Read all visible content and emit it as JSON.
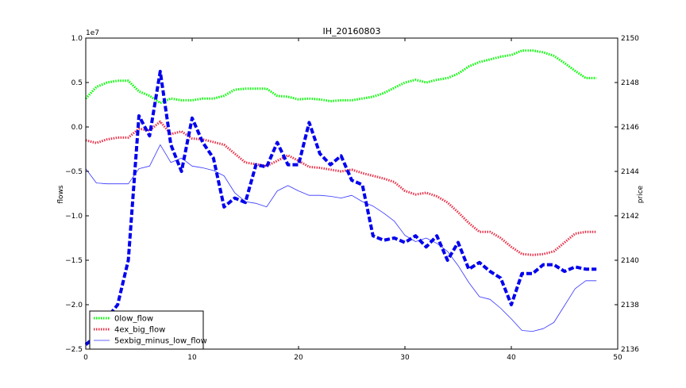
{
  "chart_data": {
    "type": "line",
    "title": "IH_20160803",
    "xlabel": "",
    "ylabel_left": "flows",
    "ylabel_right": "price",
    "left_axis_multiplier": "1e7",
    "xlim": [
      0,
      50
    ],
    "ylim_left": [
      -2.5,
      1.0
    ],
    "ylim_right": [
      2136,
      2150
    ],
    "grid": false,
    "legend_position": "lower-left",
    "x_ticks": [
      0,
      10,
      20,
      30,
      40,
      50
    ],
    "x_tick_labels": [
      "0",
      "10",
      "20",
      "30",
      "40",
      "50"
    ],
    "y_left_ticks": [
      -2.5,
      -2.0,
      -1.5,
      -1.0,
      -0.5,
      0.0,
      0.5,
      1.0
    ],
    "y_left_tick_labels": [
      "−2.5",
      "−2.0",
      "−1.5",
      "−1.0",
      "−0.5",
      "0.0",
      "0.5",
      "1.0"
    ],
    "y_right_ticks": [
      2136,
      2138,
      2140,
      2142,
      2144,
      2146,
      2148,
      2150
    ],
    "y_right_tick_labels": [
      "2136",
      "2138",
      "2140",
      "2142",
      "2144",
      "2146",
      "2148",
      "2150"
    ],
    "series": [
      {
        "name": "0low_flow",
        "axis": "left",
        "color": "#00ff00",
        "style": "dotted",
        "x": [
          0,
          1,
          2,
          3,
          4,
          5,
          6,
          7,
          8,
          9,
          10,
          11,
          12,
          13,
          14,
          15,
          16,
          17,
          18,
          19,
          20,
          21,
          22,
          23,
          24,
          25,
          26,
          27,
          28,
          29,
          30,
          31,
          32,
          33,
          34,
          35,
          36,
          37,
          38,
          39,
          40,
          41,
          42,
          43,
          44,
          45,
          46,
          47,
          48
        ],
        "values": [
          0.32,
          0.45,
          0.5,
          0.52,
          0.52,
          0.4,
          0.35,
          0.27,
          0.32,
          0.3,
          0.3,
          0.32,
          0.32,
          0.35,
          0.42,
          0.43,
          0.43,
          0.43,
          0.35,
          0.34,
          0.31,
          0.32,
          0.31,
          0.29,
          0.3,
          0.3,
          0.32,
          0.34,
          0.38,
          0.44,
          0.5,
          0.53,
          0.5,
          0.53,
          0.55,
          0.6,
          0.68,
          0.73,
          0.76,
          0.79,
          0.81,
          0.86,
          0.86,
          0.84,
          0.8,
          0.72,
          0.63,
          0.55,
          0.55
        ]
      },
      {
        "name": "4ex_big_flow",
        "axis": "left",
        "color": "#e8324a",
        "style": "dotted",
        "x": [
          0,
          1,
          2,
          3,
          4,
          5,
          6,
          7,
          8,
          9,
          10,
          11,
          12,
          13,
          14,
          15,
          16,
          17,
          18,
          19,
          20,
          21,
          22,
          23,
          24,
          25,
          26,
          27,
          28,
          29,
          30,
          31,
          32,
          33,
          34,
          35,
          36,
          37,
          38,
          39,
          40,
          41,
          42,
          43,
          44,
          45,
          46,
          47,
          48
        ],
        "values": [
          -0.15,
          -0.18,
          -0.14,
          -0.12,
          -0.12,
          -0.02,
          -0.04,
          0.06,
          -0.08,
          -0.05,
          -0.13,
          -0.14,
          -0.17,
          -0.2,
          -0.3,
          -0.4,
          -0.42,
          -0.44,
          -0.38,
          -0.32,
          -0.38,
          -0.45,
          -0.46,
          -0.48,
          -0.5,
          -0.48,
          -0.52,
          -0.55,
          -0.58,
          -0.62,
          -0.72,
          -0.76,
          -0.74,
          -0.78,
          -0.85,
          -0.96,
          -1.08,
          -1.18,
          -1.18,
          -1.25,
          -1.35,
          -1.43,
          -1.44,
          -1.43,
          -1.4,
          -1.3,
          -1.2,
          -1.18,
          -1.18
        ]
      },
      {
        "name": "5exbig_minus_low_flow",
        "axis": "left",
        "color": "#3333ff",
        "style": "solid",
        "x": [
          0,
          1,
          2,
          3,
          4,
          5,
          6,
          7,
          8,
          9,
          10,
          11,
          12,
          13,
          14,
          15,
          16,
          17,
          18,
          19,
          20,
          21,
          22,
          23,
          24,
          25,
          26,
          27,
          28,
          29,
          30,
          31,
          32,
          33,
          34,
          35,
          36,
          37,
          38,
          39,
          40,
          41,
          42,
          43,
          44,
          45,
          46,
          47,
          48
        ],
        "values": [
          -0.47,
          -0.63,
          -0.64,
          -0.64,
          -0.64,
          -0.47,
          -0.44,
          -0.2,
          -0.4,
          -0.35,
          -0.44,
          -0.46,
          -0.49,
          -0.55,
          -0.74,
          -0.84,
          -0.86,
          -0.9,
          -0.72,
          -0.66,
          -0.72,
          -0.77,
          -0.77,
          -0.78,
          -0.8,
          -0.77,
          -0.84,
          -0.89,
          -0.97,
          -1.06,
          -1.22,
          -1.29,
          -1.25,
          -1.31,
          -1.4,
          -1.56,
          -1.75,
          -1.91,
          -1.94,
          -2.04,
          -2.16,
          -2.29,
          -2.3,
          -2.27,
          -2.2,
          -2.01,
          -1.82,
          -1.73,
          -1.73
        ]
      },
      {
        "name": "price",
        "axis": "right",
        "color": "#0000ee",
        "style": "dashed",
        "x": [
          0,
          1,
          2,
          3,
          4,
          5,
          6,
          7,
          8,
          9,
          10,
          11,
          12,
          13,
          14,
          15,
          16,
          17,
          18,
          19,
          20,
          21,
          22,
          23,
          24,
          25,
          26,
          27,
          28,
          29,
          30,
          31,
          32,
          33,
          34,
          35,
          36,
          37,
          38,
          39,
          40,
          41,
          42,
          43,
          44,
          45,
          46,
          47,
          48
        ],
        "values": [
          2136.2,
          2136.6,
          2137.4,
          2138.0,
          2140.0,
          2146.5,
          2145.6,
          2148.5,
          2145.2,
          2144.0,
          2146.4,
          2145.3,
          2144.6,
          2142.4,
          2142.8,
          2142.6,
          2144.3,
          2144.2,
          2145.3,
          2144.3,
          2144.3,
          2146.2,
          2144.8,
          2144.3,
          2144.7,
          2143.6,
          2143.4,
          2141.1,
          2140.9,
          2141.0,
          2140.8,
          2141.1,
          2140.6,
          2141.1,
          2140.0,
          2140.8,
          2139.6,
          2139.9,
          2139.5,
          2139.2,
          2138.0,
          2139.4,
          2139.4,
          2139.8,
          2139.8,
          2139.5,
          2139.7,
          2139.6,
          2139.6
        ]
      }
    ]
  }
}
